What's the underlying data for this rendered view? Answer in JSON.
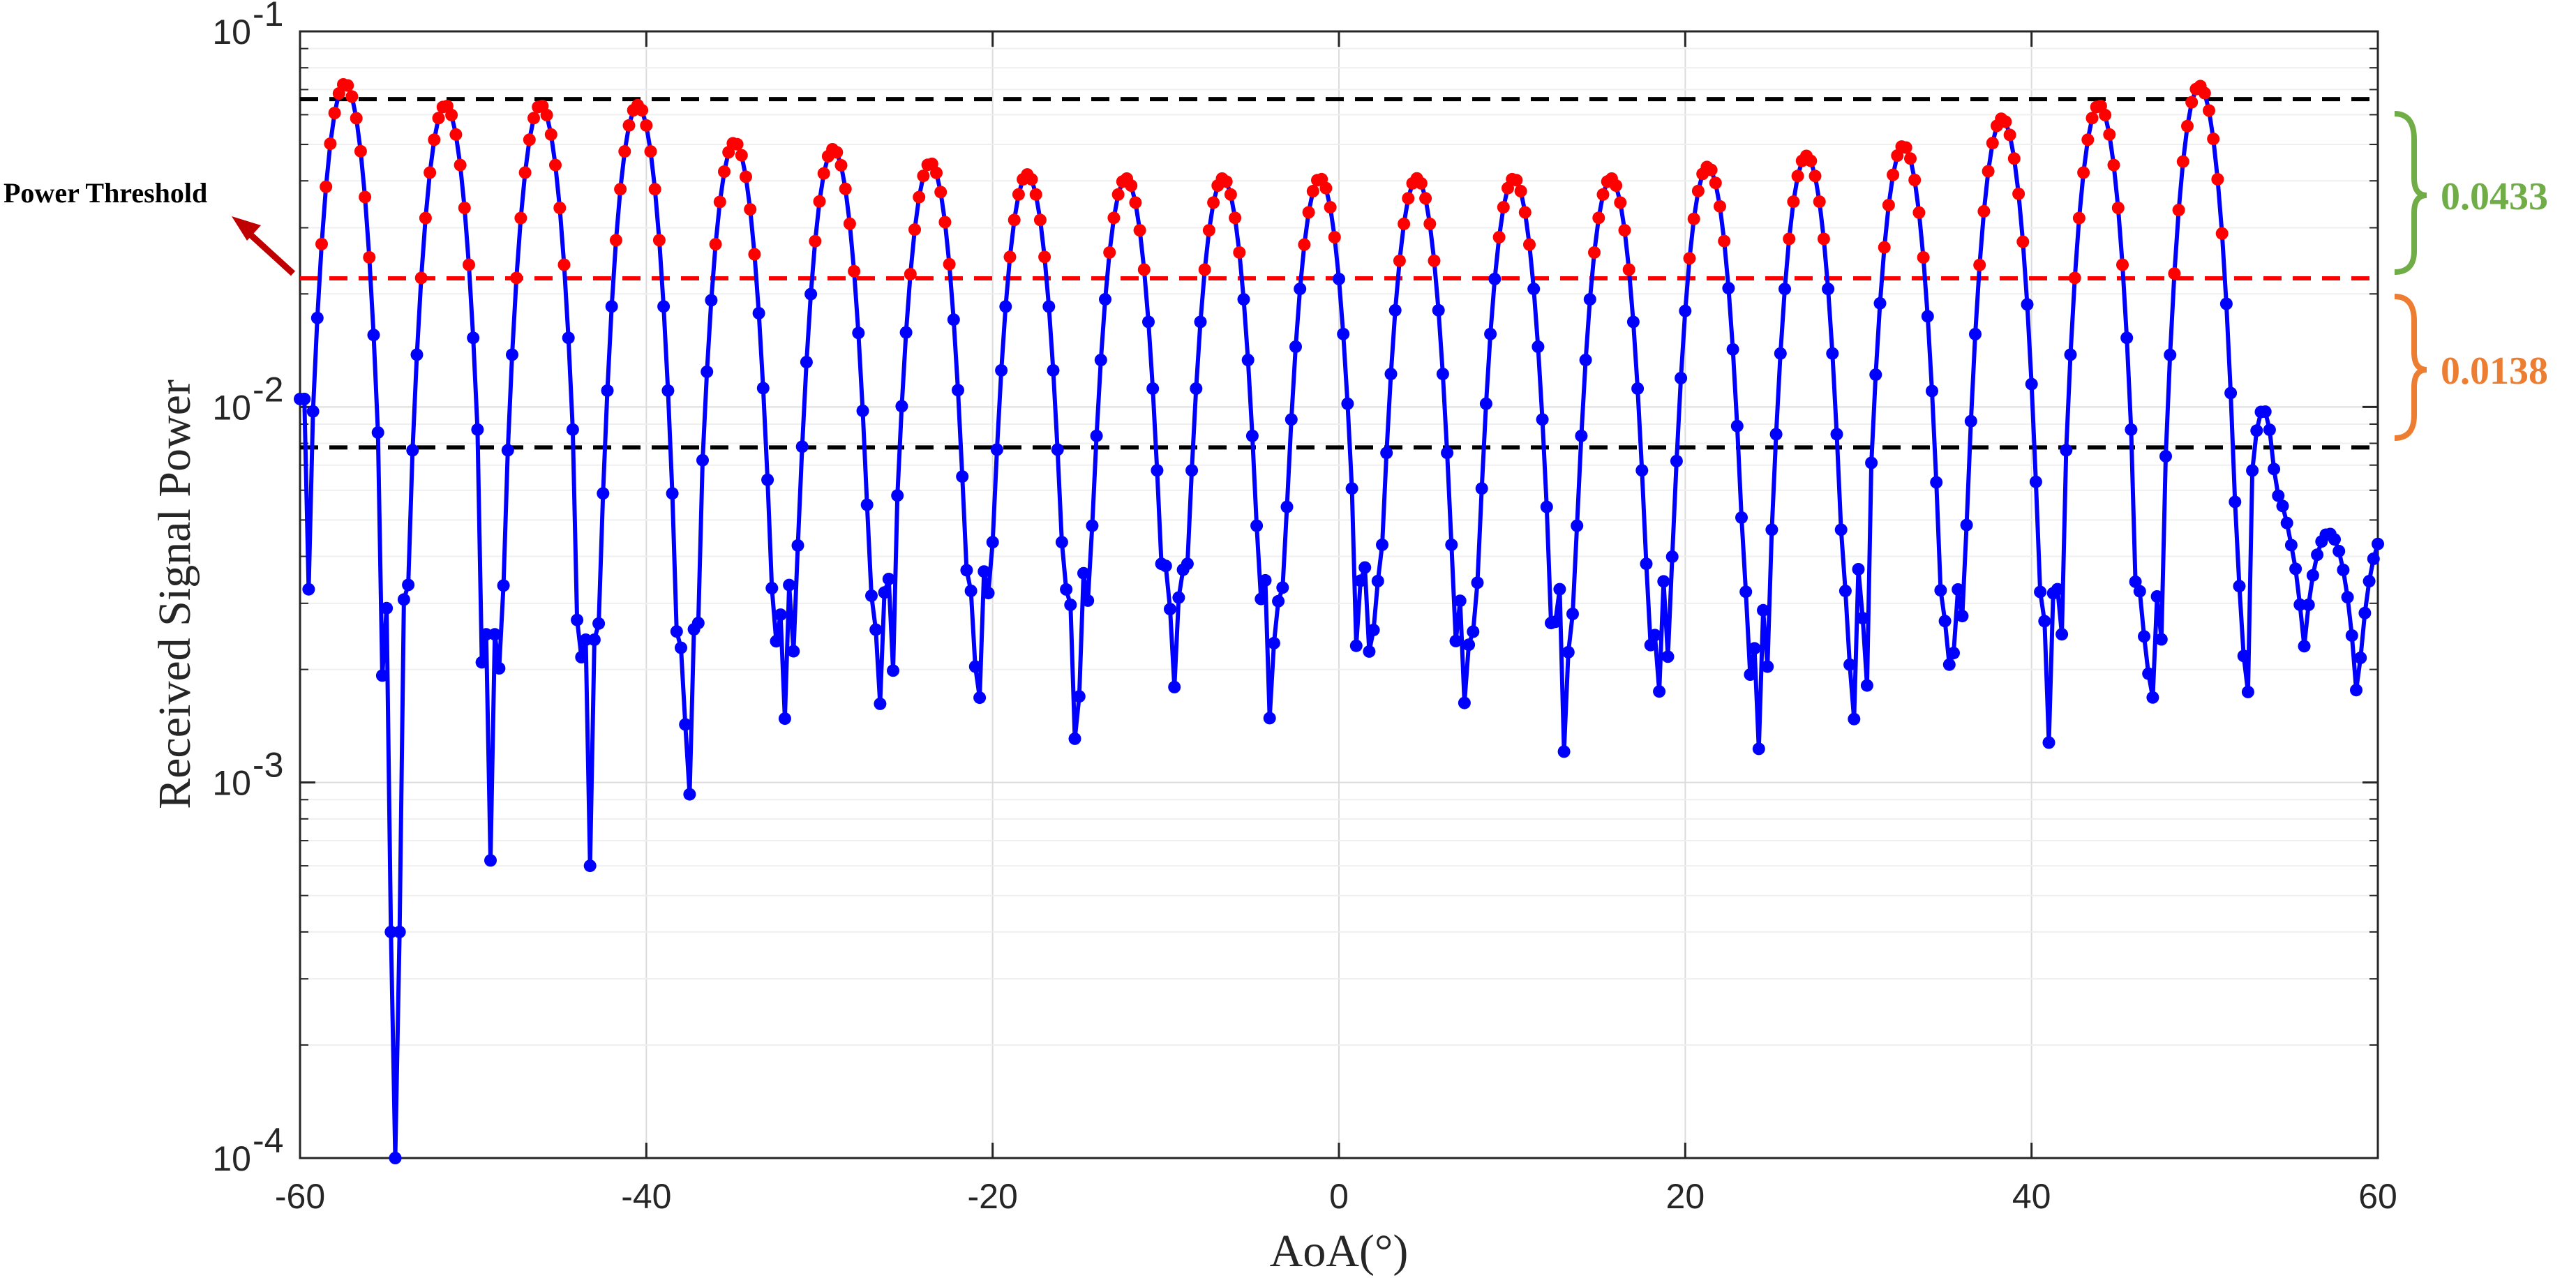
{
  "chart_data": {
    "type": "line",
    "xlabel": "AoA(°)",
    "ylabel": "Received Signal Power",
    "xlim": [
      -60,
      60
    ],
    "ylim": [
      0.0001,
      0.1
    ],
    "yscale": "log",
    "grid": true,
    "x_ticks": [
      "-60",
      "-40",
      "-20",
      "0",
      "20",
      "40",
      "60"
    ],
    "y_ticks": [
      {
        "base": "10",
        "exp": "-1"
      },
      {
        "base": "10",
        "exp": "-2"
      },
      {
        "base": "10",
        "exp": "-3"
      },
      {
        "base": "10",
        "exp": "-4"
      }
    ],
    "series": [
      {
        "color": "#0000ff",
        "marker_color_below": "#0000ff",
        "marker_color_above": "#ff0000",
        "peaks_deg": [
          -57.4,
          -51.6,
          -46.1,
          -40.5,
          -34.9,
          -29.2,
          -23.6,
          -18.0,
          -12.3,
          -6.7,
          -1.1,
          4.5,
          10.1,
          15.7,
          21.3,
          27.0,
          32.6,
          38.3,
          43.9,
          49.7
        ],
        "peak_power": [
          0.071,
          0.062,
          0.062,
          0.062,
          0.049,
          0.047,
          0.043,
          0.04,
          0.039,
          0.039,
          0.039,
          0.039,
          0.039,
          0.039,
          0.042,
          0.045,
          0.048,
          0.057,
          0.062,
          0.07
        ],
        "null_deg": [
          -54.6,
          -48.9,
          -43.3,
          -37.6
        ],
        "null_power": [
          0.0001,
          0.00062,
          0.0006,
          0.00093
        ]
      }
    ],
    "reference_lines": [
      {
        "name": "upper",
        "value": 0.066,
        "color": "#000000",
        "style": "dashed"
      },
      {
        "name": "power-threshold",
        "value": 0.022,
        "color": "#ff0000",
        "style": "dashed"
      },
      {
        "name": "lower",
        "value": 0.0078,
        "color": "#000000",
        "style": "dashed"
      }
    ],
    "annotations": {
      "threshold_label": "Power Threshold",
      "upper_gap": "0.0433",
      "lower_gap": "0.0138",
      "upper_gap_color": "#70ad47",
      "lower_gap_color": "#ed7d31",
      "arrow_color": "#c00000"
    }
  }
}
